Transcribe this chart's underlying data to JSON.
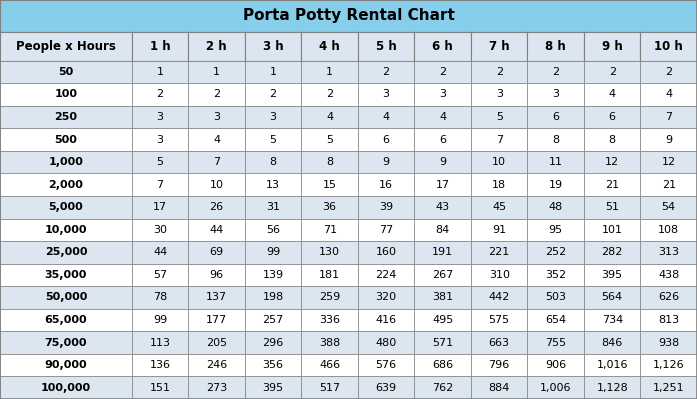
{
  "title": "Porta Potty Rental Chart",
  "title_bg": "#87ceeb",
  "col_header": [
    "People x Hours",
    "1 h",
    "2 h",
    "3 h",
    "4 h",
    "5 h",
    "6 h",
    "7 h",
    "8 h",
    "9 h",
    "10 h"
  ],
  "row_labels": [
    "50",
    "100",
    "250",
    "500",
    "1,000",
    "2,000",
    "5,000",
    "10,000",
    "25,000",
    "35,000",
    "50,000",
    "65,000",
    "75,000",
    "90,000",
    "100,000"
  ],
  "data_display": [
    [
      "1",
      "1",
      "1",
      "1",
      "2",
      "2",
      "2",
      "2",
      "2",
      "2"
    ],
    [
      "2",
      "2",
      "2",
      "2",
      "3",
      "3",
      "3",
      "3",
      "4",
      "4"
    ],
    [
      "3",
      "3",
      "3",
      "4",
      "4",
      "4",
      "5",
      "6",
      "6",
      "7"
    ],
    [
      "3",
      "4",
      "5",
      "5",
      "6",
      "6",
      "7",
      "8",
      "8",
      "9"
    ],
    [
      "5",
      "7",
      "8",
      "8",
      "9",
      "9",
      "10",
      "11",
      "12",
      "12"
    ],
    [
      "7",
      "10",
      "13",
      "15",
      "16",
      "17",
      "18",
      "19",
      "21",
      "21"
    ],
    [
      "17",
      "26",
      "31",
      "36",
      "39",
      "43",
      "45",
      "48",
      "51",
      "54"
    ],
    [
      "30",
      "44",
      "56",
      "71",
      "77",
      "84",
      "91",
      "95",
      "101",
      "108"
    ],
    [
      "44",
      "69",
      "99",
      "130",
      "160",
      "191",
      "221",
      "252",
      "282",
      "313"
    ],
    [
      "57",
      "96",
      "139",
      "181",
      "224",
      "267",
      "310",
      "352",
      "395",
      "438"
    ],
    [
      "78",
      "137",
      "198",
      "259",
      "320",
      "381",
      "442",
      "503",
      "564",
      "626"
    ],
    [
      "99",
      "177",
      "257",
      "336",
      "416",
      "495",
      "575",
      "654",
      "734",
      "813"
    ],
    [
      "113",
      "205",
      "296",
      "388",
      "480",
      "571",
      "663",
      "755",
      "846",
      "938"
    ],
    [
      "136",
      "246",
      "356",
      "466",
      "576",
      "686",
      "796",
      "906",
      "1,016",
      "1,126"
    ],
    [
      "151",
      "273",
      "395",
      "517",
      "639",
      "762",
      "884",
      "1,006",
      "1,128",
      "1,251"
    ]
  ],
  "header_bg": "#dce6f1",
  "row_bg_even": "#ffffff",
  "row_bg_odd": "#dce6f1",
  "border_color": "#7f7f7f",
  "text_color": "#000000",
  "col_widths_raw": [
    1.75,
    0.75,
    0.75,
    0.75,
    0.75,
    0.75,
    0.75,
    0.75,
    0.75,
    0.75,
    0.75
  ],
  "title_fontsize": 11,
  "header_fontsize": 8.5,
  "cell_fontsize": 8.0
}
